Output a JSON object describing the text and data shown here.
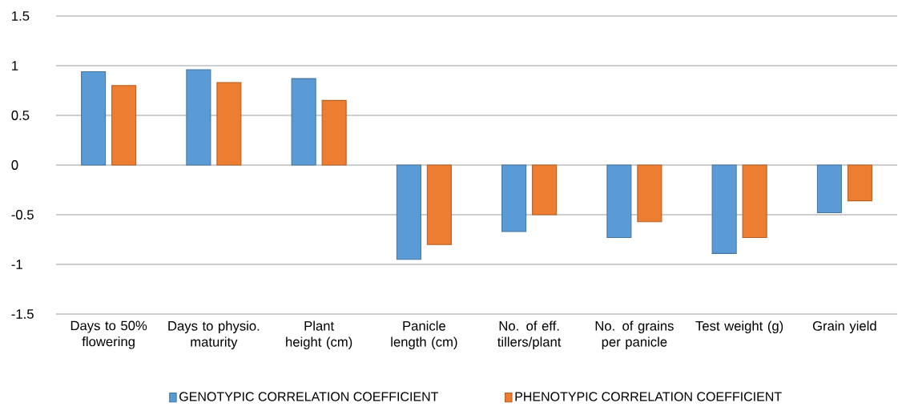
{
  "chart_data": {
    "type": "bar",
    "categories": [
      "Days to 50% flowering",
      "Days to physio. maturity",
      "Plant height (cm)",
      "Panicle length (cm)",
      "No. of eff. tillers/plant",
      "No. of grains per panicle",
      "Test weight (g)",
      "Grain yield"
    ],
    "series": [
      {
        "name": "GENOTYPIC CORRELATION COEFFICIENT",
        "color": "#5b9bd5",
        "values": [
          0.94,
          0.96,
          0.87,
          -0.95,
          -0.67,
          -0.73,
          -0.89,
          -0.48
        ]
      },
      {
        "name": "PHENOTYPIC CORRELATION COEFFICIENT",
        "color": "#ed7d31",
        "values": [
          0.8,
          0.83,
          0.65,
          -0.8,
          -0.5,
          -0.57,
          -0.73,
          -0.36
        ]
      }
    ],
    "ylim": [
      -1.5,
      1.5
    ],
    "yticks": [
      -1.5,
      -1,
      -0.5,
      0,
      0.5,
      1,
      1.5
    ],
    "grid": "y",
    "legend": "bottom"
  }
}
